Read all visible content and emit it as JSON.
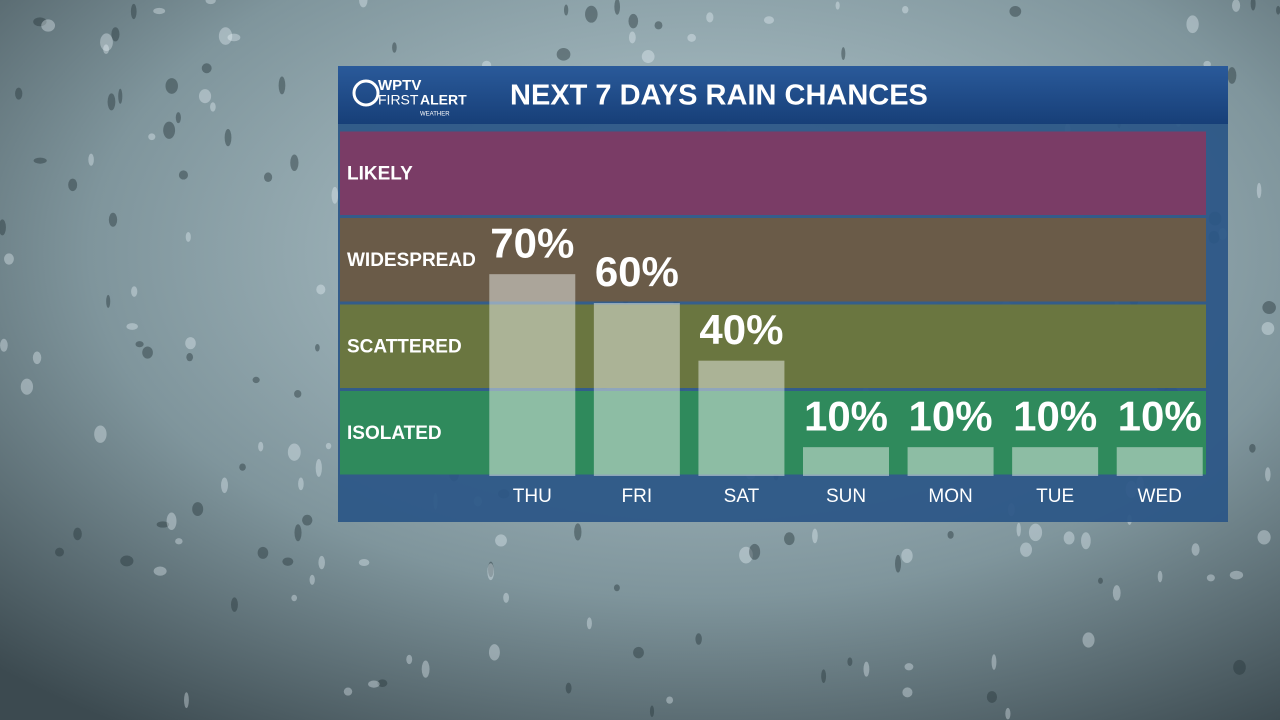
{
  "logo": {
    "station": "WPTV",
    "first": "FIRST",
    "alert": "ALERT",
    "sub": "WEATHER"
  },
  "chart_data": {
    "type": "bar",
    "title": "NEXT 7 DAYS RAIN CHANCES",
    "categories": [
      "THU",
      "FRI",
      "SAT",
      "SUN",
      "MON",
      "TUE",
      "WED"
    ],
    "values": [
      70,
      60,
      40,
      10,
      10,
      10,
      10
    ],
    "value_labels": [
      "70%",
      "60%",
      "40%",
      "10%",
      "10%",
      "10%",
      "10%"
    ],
    "color": "rgba(235,240,235,0.5)",
    "ylim": [
      0,
      120
    ],
    "bands": [
      {
        "label": "ISOLATED",
        "color": "#2f8a5c"
      },
      {
        "label": "SCATTERED",
        "color": "#6a7640"
      },
      {
        "label": "WIDESPREAD",
        "color": "#6a5b48"
      },
      {
        "label": "LIKELY",
        "color": "#7a3c66"
      }
    ]
  }
}
